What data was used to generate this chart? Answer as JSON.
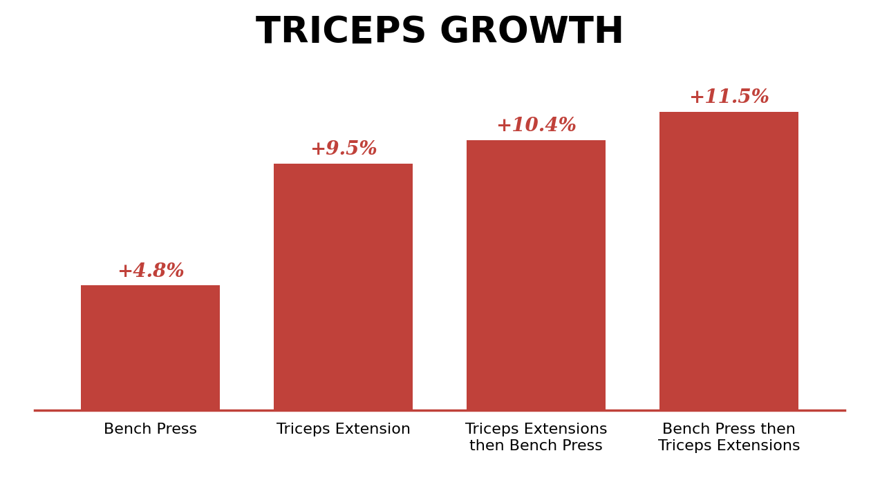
{
  "categories": [
    "Bench Press",
    "Triceps Extension",
    "Triceps Extensions\nthen Bench Press",
    "Bench Press then\nTriceps Extensions"
  ],
  "values": [
    4.8,
    9.5,
    10.4,
    11.5
  ],
  "labels": [
    "+4.8%",
    "+9.5%",
    "+10.4%",
    "+11.5%"
  ],
  "bar_color": "#c0413a",
  "label_color": "#c0413a",
  "spine_color": "#c0413a",
  "title": "TRICEPS GROWTH",
  "title_fontsize": 38,
  "label_fontsize": 20,
  "tick_fontsize": 16,
  "background_color": "#ffffff",
  "ylim": [
    0,
    13.5
  ],
  "bar_width": 0.72
}
